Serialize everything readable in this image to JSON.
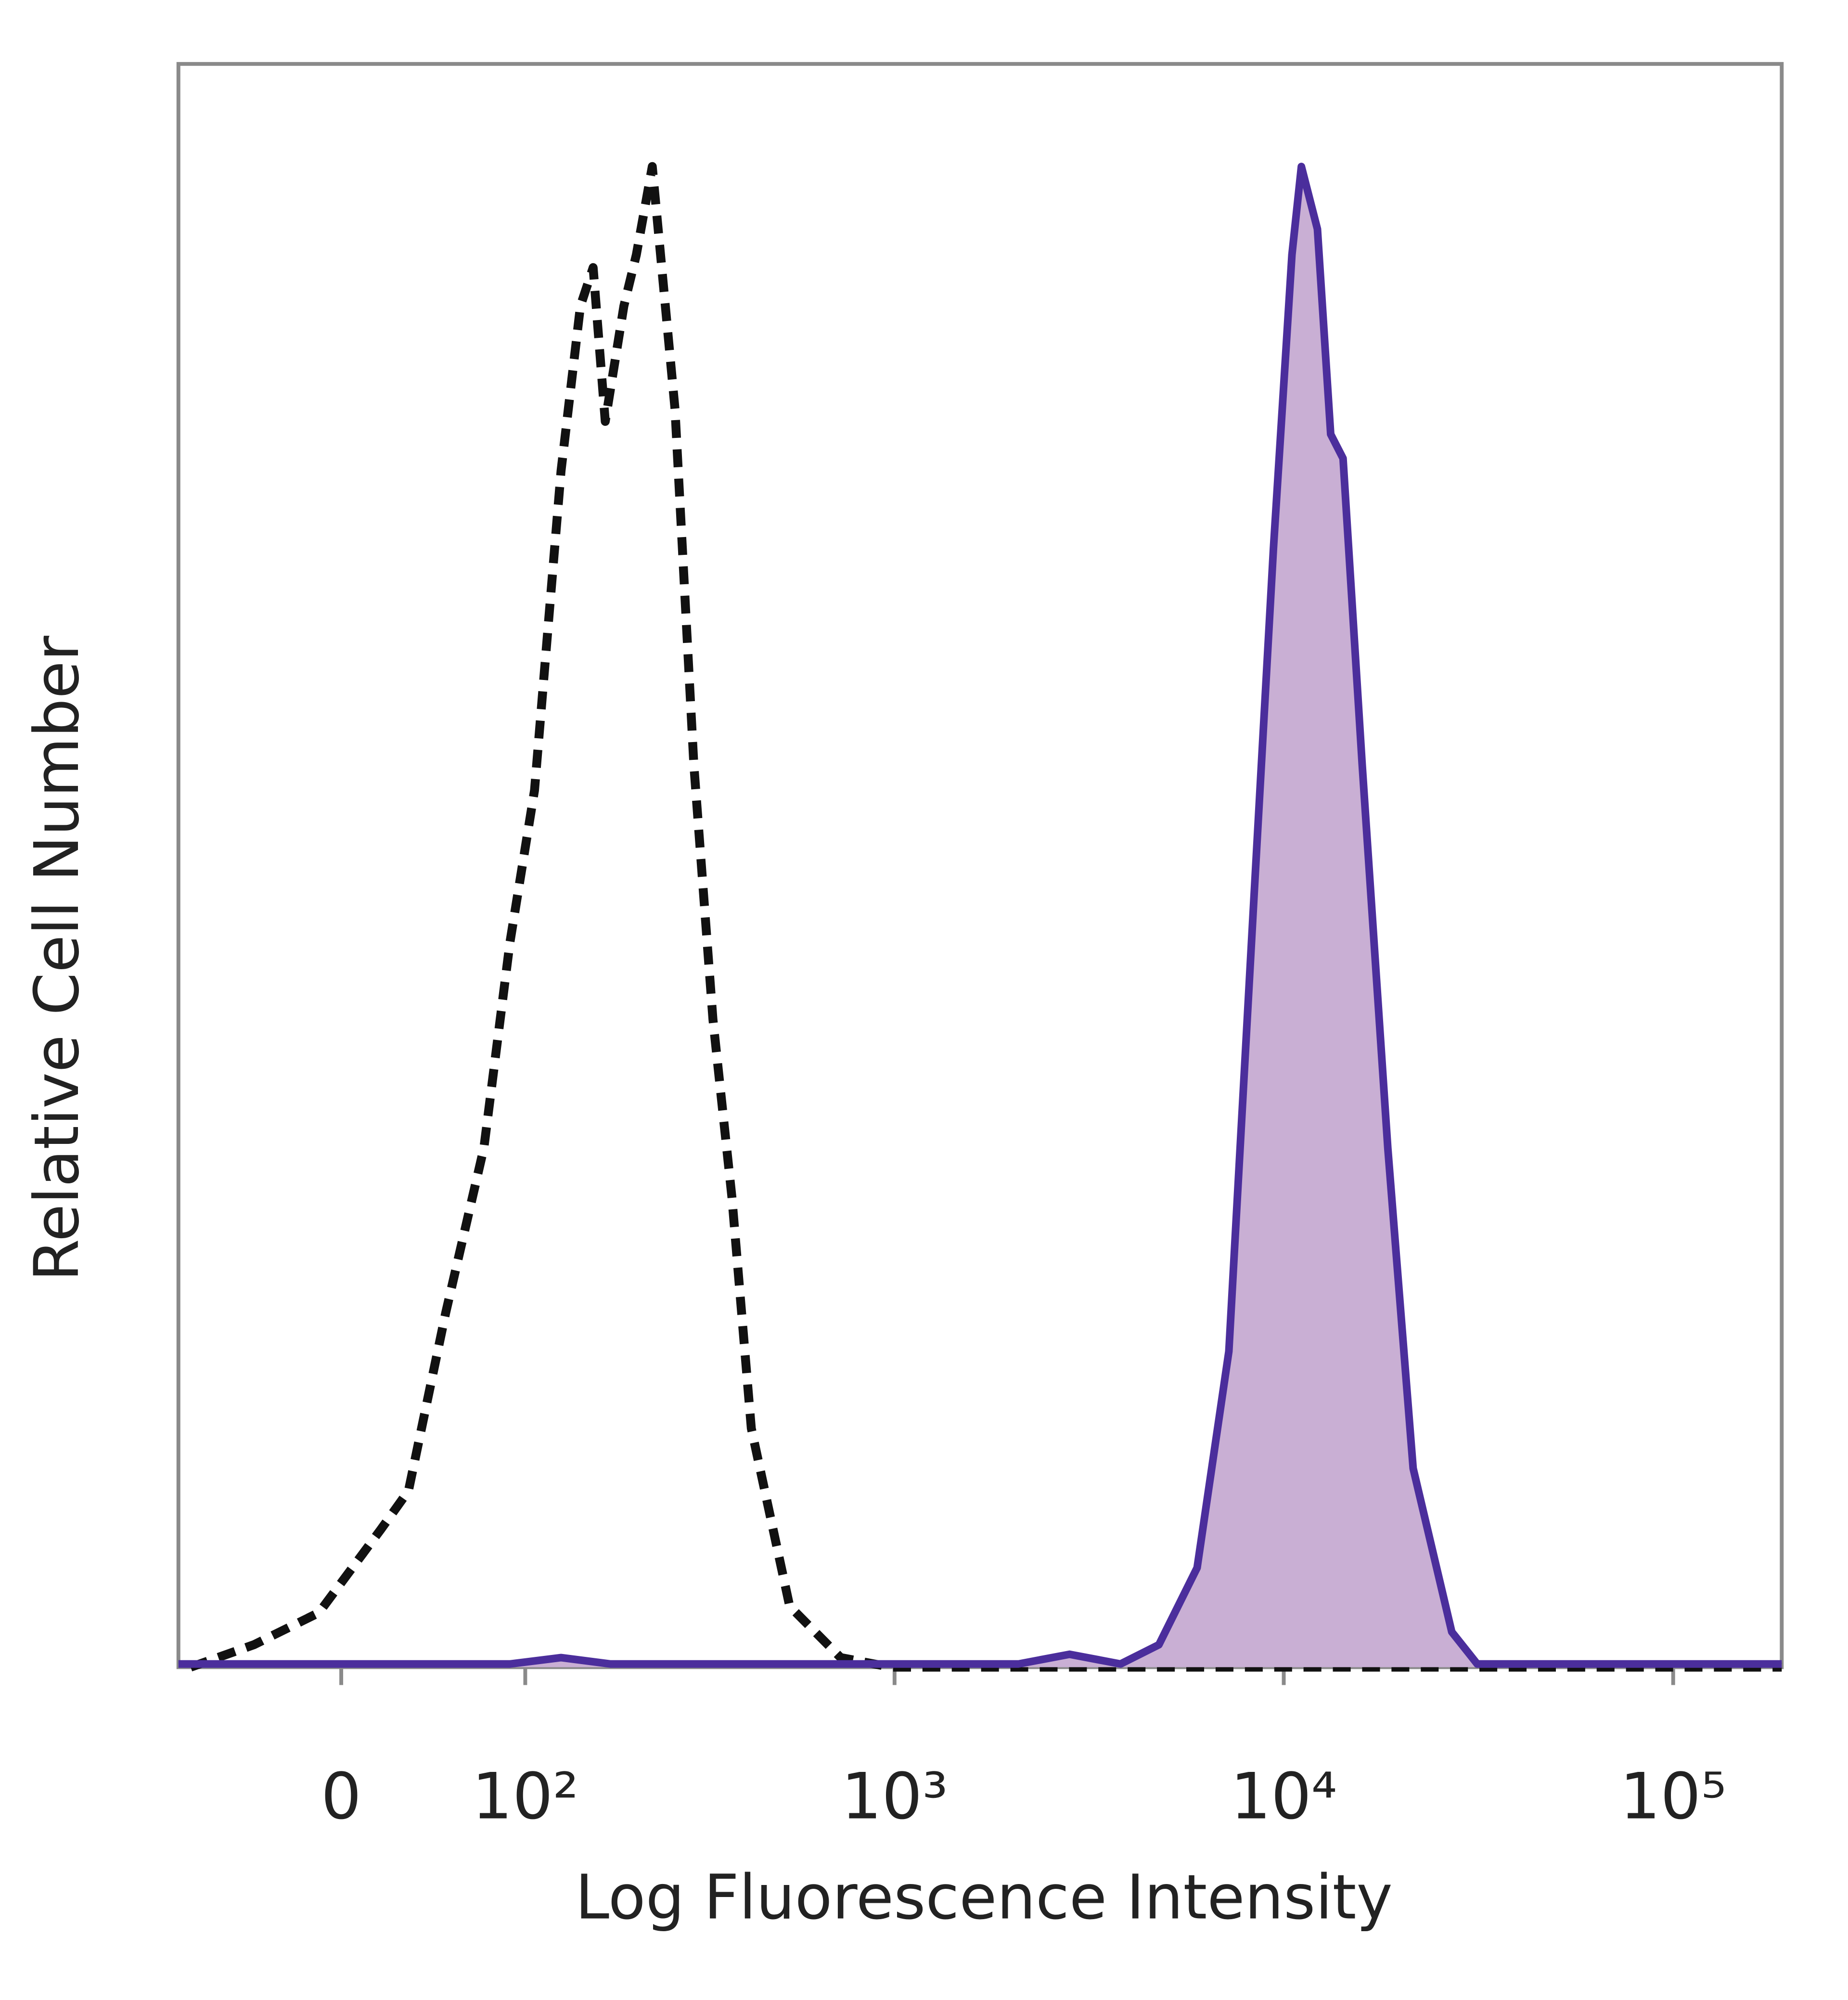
{
  "chart_data": {
    "type": "line",
    "x_label": "Log Fluorescence Intensity",
    "y_label": "Relative Cell Number",
    "xscale": "biexponential",
    "xlim": [
      -85,
      190000
    ],
    "xticks": [
      0,
      {
        "value": 100,
        "label": "10²"
      },
      {
        "value": 1000,
        "label": "10³"
      },
      {
        "value": 10000,
        "label": "10⁴"
      },
      {
        "value": 100000,
        "label": "10⁵"
      }
    ],
    "ylim": [
      0,
      100
    ],
    "series": [
      {
        "color": "#111111",
        "style": "dashed",
        "x": [
          -77,
          -41,
          -10,
          18,
          31,
          50,
          72,
          89,
          107,
          129,
          147,
          160,
          173,
          195,
          211,
          233,
          268,
          301,
          338,
          379,
          426,
          536,
          726,
          980,
          190000
        ],
        "values": [
          0,
          1.4,
          3.4,
          8.6,
          11.0,
          22.1,
          32.4,
          45.2,
          54.7,
          74.6,
          84.9,
          87.3,
          77.7,
          84.9,
          88.1,
          93.6,
          78.5,
          56.3,
          40.4,
          29.3,
          14.9,
          3.8,
          0.6,
          0,
          0
        ]
      },
      {
        "color": "#4b2e9c",
        "fill": "#c9afd4",
        "style": "solid",
        "x": [
          -85,
          89,
          129,
          179,
          2083,
          2817,
          3809,
          4780,
          5990,
          7230,
          8400,
          9410,
          10500,
          11100,
          12200,
          13200,
          14200,
          15900,
          18500,
          21500,
          27000,
          31400,
          190000
        ],
        "values": [
          0.2,
          0.2,
          0.6,
          0.2,
          0.2,
          0.8,
          0.2,
          1.4,
          6.2,
          19.7,
          48.3,
          69.8,
          88.1,
          93.6,
          89.7,
          76.9,
          75.4,
          56.3,
          32.4,
          12.4,
          2.2,
          0.2,
          0.2
        ]
      }
    ]
  }
}
